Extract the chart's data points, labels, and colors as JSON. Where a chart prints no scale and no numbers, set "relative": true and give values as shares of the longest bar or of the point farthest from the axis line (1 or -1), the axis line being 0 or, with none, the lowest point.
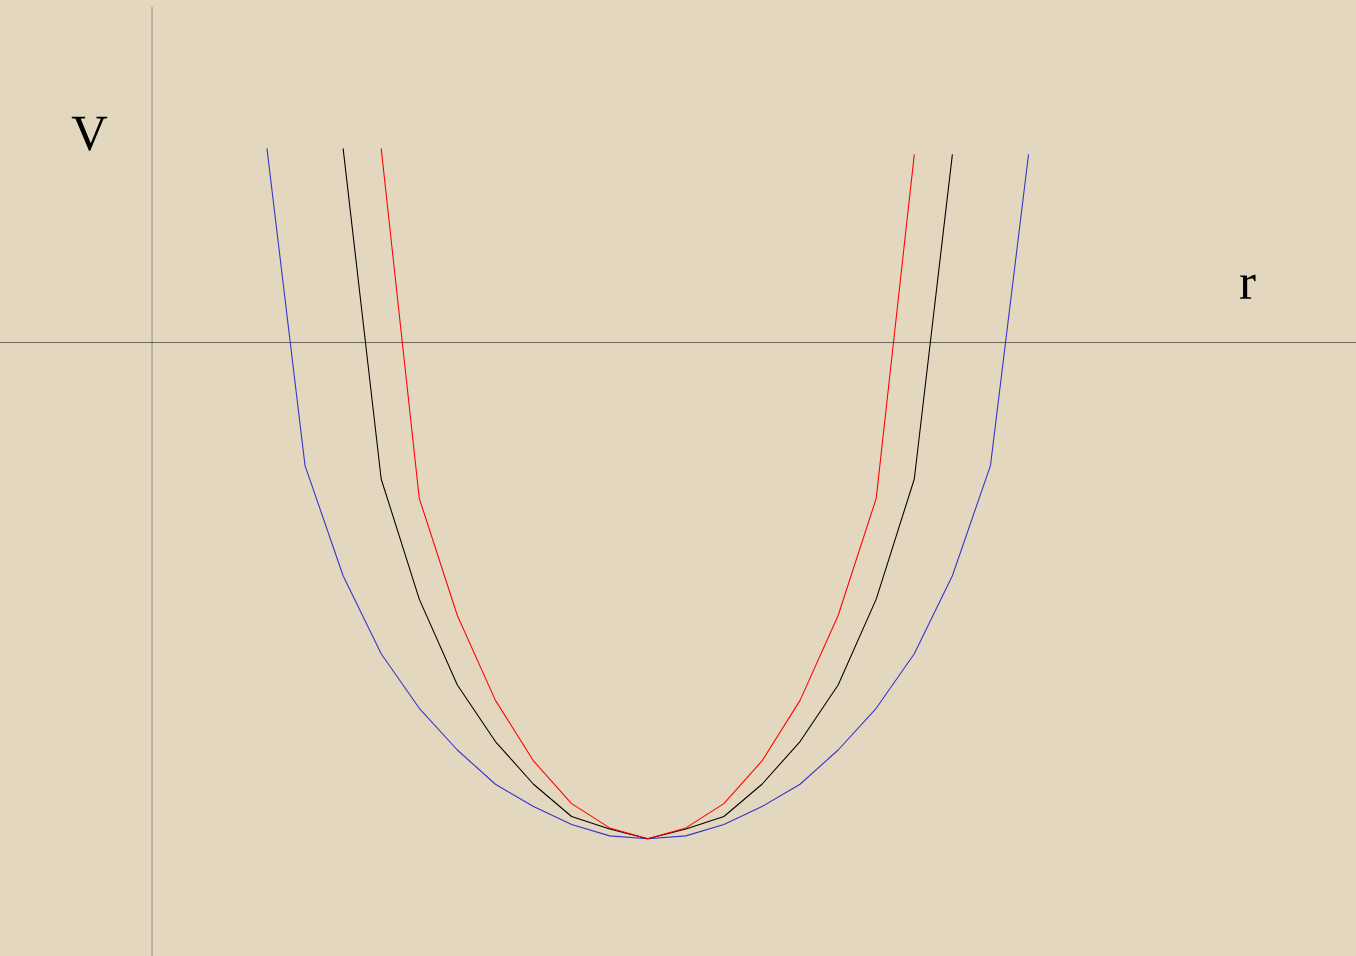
{
  "chart_data": {
    "type": "line",
    "relative": true,
    "xlabel": "r",
    "ylabel": "V",
    "line_style": "solid",
    "categories": [
      null,
      null,
      null,
      null,
      null,
      null,
      null,
      null,
      null,
      null,
      null,
      null,
      null,
      null,
      null,
      null,
      null,
      null,
      null,
      null,
      null
    ],
    "series": [
      {
        "color": "#3333cc",
        "values": [
          0.391,
          -0.248,
          -0.47,
          -0.627,
          -0.737,
          -0.821,
          -0.89,
          -0.935,
          -0.971,
          -0.994,
          -1,
          -0.994,
          -0.971,
          -0.935,
          -0.89,
          -0.821,
          -0.737,
          -0.627,
          -0.47,
          -0.248,
          0.379
        ]
      },
      {
        "color": "#000000",
        "values": [
          null,
          null,
          0.391,
          -0.275,
          -0.517,
          -0.69,
          -0.804,
          -0.89,
          -0.955,
          -0.98,
          -1,
          -0.98,
          -0.955,
          -0.89,
          -0.804,
          -0.69,
          -0.517,
          -0.275,
          0.379,
          null,
          null
        ]
      },
      {
        "color": "#ff0000",
        "values": [
          null,
          null,
          null,
          0.391,
          -0.314,
          -0.55,
          -0.721,
          -0.843,
          -0.929,
          -0.978,
          -1,
          -0.978,
          -0.929,
          -0.843,
          -0.721,
          -0.55,
          -0.314,
          0.379,
          null,
          null,
          null
        ]
      }
    ]
  }
}
